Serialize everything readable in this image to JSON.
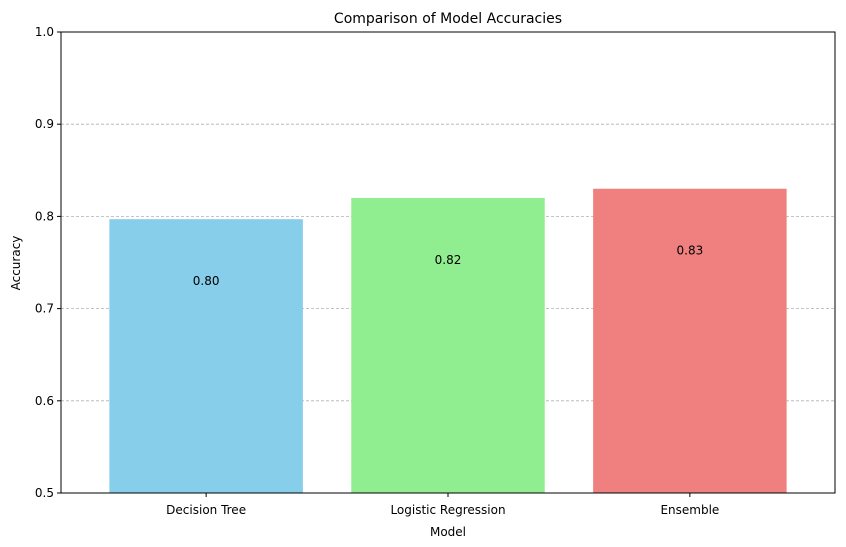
{
  "chart_data": {
    "type": "bar",
    "title": "Comparison of Model Accuracies",
    "xlabel": "Model",
    "ylabel": "Accuracy",
    "categories": [
      "Decision Tree",
      "Logistic Regression",
      "Ensemble"
    ],
    "values": [
      0.797,
      0.82,
      0.83
    ],
    "data_labels": [
      "0.80",
      "0.82",
      "0.83"
    ],
    "colors": [
      "#87ceeb",
      "#90ee90",
      "#f08080"
    ],
    "ylim": [
      0.5,
      1.0
    ],
    "yticks": [
      0.5,
      0.6,
      0.7,
      0.8,
      0.9,
      1.0
    ],
    "ytick_labels": [
      "0.5",
      "0.6",
      "0.7",
      "0.8",
      "0.9",
      "1.0"
    ],
    "grid": "y-dashed",
    "legend": "none"
  }
}
